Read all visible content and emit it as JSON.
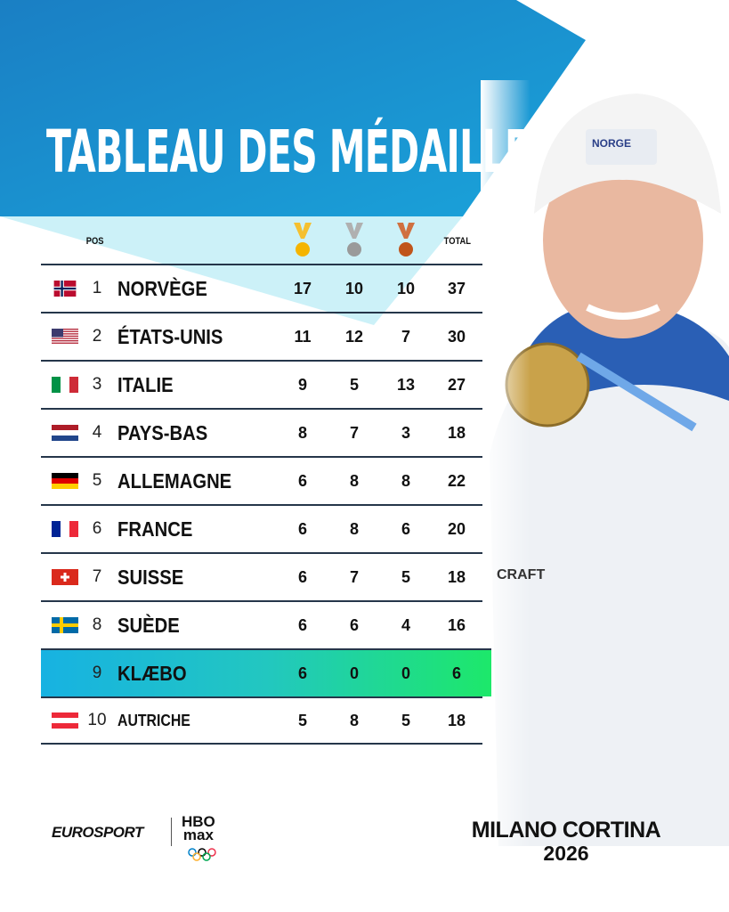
{
  "title": "TABLEAU DES MÉDAILLES",
  "headers": {
    "pos": "POS",
    "total": "TOTAL",
    "gold_icon": "gold-medal-icon",
    "silver_icon": "silver-medal-icon",
    "bronze_icon": "bronze-medal-icon"
  },
  "colors": {
    "brand_blue": "#1a8fd0",
    "highlight_start": "#17b2e2",
    "highlight_end": "#1de86a",
    "gold": "#f5b400",
    "silver": "#9a9a9a",
    "bronze": "#c0541a"
  },
  "rows": [
    {
      "pos": "1",
      "name": "NORVÈGE",
      "gold": "17",
      "silver": "10",
      "bronze": "10",
      "total": "37",
      "flag": "norway"
    },
    {
      "pos": "2",
      "name": "ÉTATS-UNIS",
      "gold": "11",
      "silver": "12",
      "bronze": "7",
      "total": "30",
      "flag": "usa"
    },
    {
      "pos": "3",
      "name": "ITALIE",
      "gold": "9",
      "silver": "5",
      "bronze": "13",
      "total": "27",
      "flag": "italy"
    },
    {
      "pos": "4",
      "name": "PAYS-BAS",
      "gold": "8",
      "silver": "7",
      "bronze": "3",
      "total": "18",
      "flag": "netherlands"
    },
    {
      "pos": "5",
      "name": "ALLEMAGNE",
      "gold": "6",
      "silver": "8",
      "bronze": "8",
      "total": "22",
      "flag": "germany"
    },
    {
      "pos": "6",
      "name": "FRANCE",
      "gold": "6",
      "silver": "8",
      "bronze": "6",
      "total": "20",
      "flag": "france"
    },
    {
      "pos": "7",
      "name": "SUISSE",
      "gold": "6",
      "silver": "7",
      "bronze": "5",
      "total": "18",
      "flag": "switzerland"
    },
    {
      "pos": "8",
      "name": "SUÈDE",
      "gold": "6",
      "silver": "6",
      "bronze": "4",
      "total": "16",
      "flag": "sweden"
    },
    {
      "pos": "9",
      "name": "KLÆBO",
      "gold": "6",
      "silver": "0",
      "bronze": "0",
      "total": "6",
      "flag": ""
    },
    {
      "pos": "10",
      "name": "AUTRICHE",
      "gold": "5",
      "silver": "8",
      "bronze": "5",
      "total": "18",
      "flag": "austria"
    }
  ],
  "footer": {
    "eurosport": "EUROSPORT",
    "hbo": "HBO",
    "max": "max",
    "event": "MILANO CORTINA",
    "year": "2026"
  },
  "photo": {
    "hat_text": "NORGE",
    "jacket_text": "CRAFT"
  }
}
